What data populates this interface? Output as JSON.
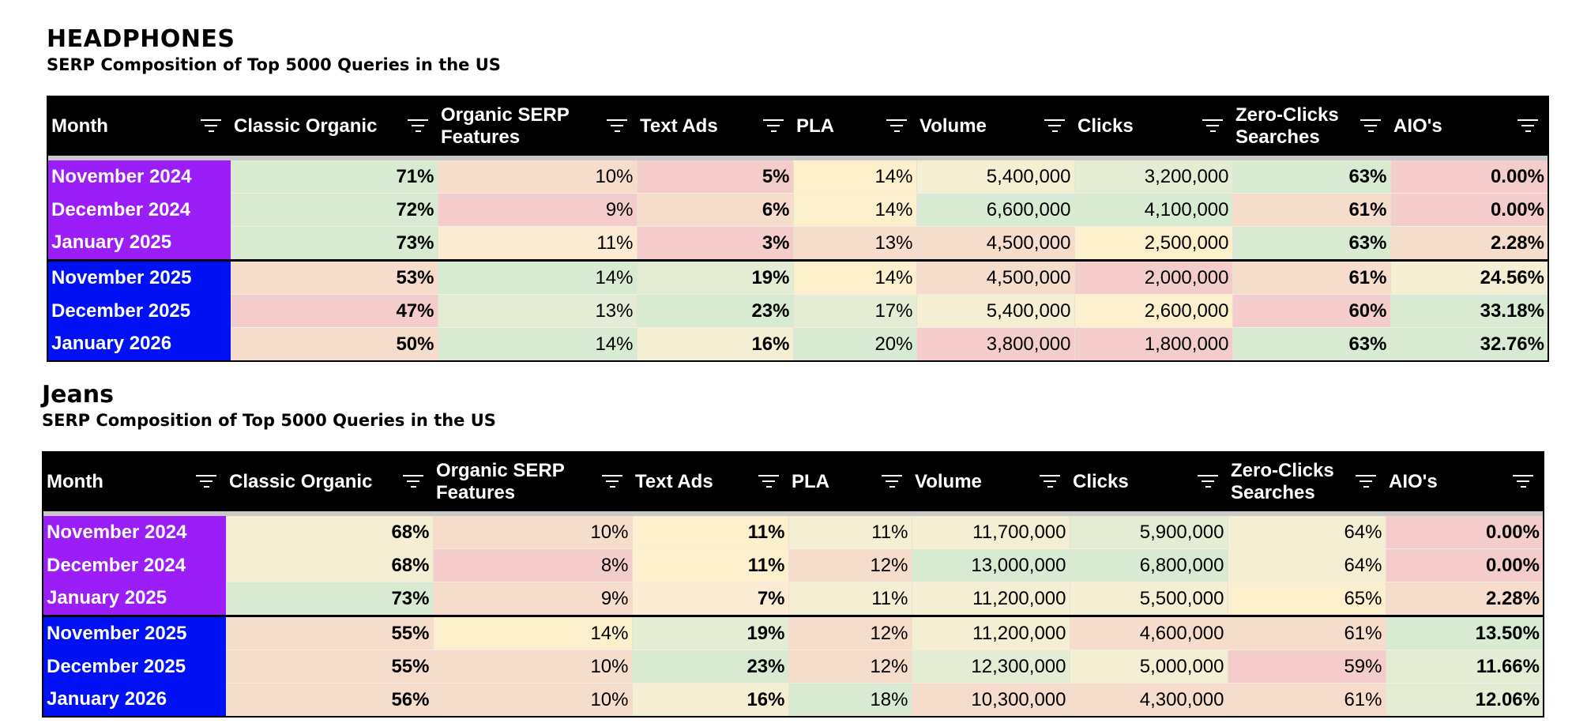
{
  "columns": [
    "Month",
    "Classic Organic",
    "Organic SERP Features",
    "Text Ads",
    "PLA",
    "Volume",
    "Clicks",
    "Zero-Clicks Searches",
    "AIO's"
  ],
  "colors": {
    "purple_month": "#9b1df8",
    "blue_month": "#0011f5",
    "green": "#d9ead3",
    "light_green": "#e4edd3",
    "yellow": "#fcf0cc",
    "light_yellow": "#f4efd3",
    "peach": "#f6dccb",
    "pink": "#f4cccc",
    "header_bg": "#000000"
  },
  "sections": [
    {
      "title": "HEADPHONES",
      "subtitle": "SERP Composition of Top 5000 Queries in the US",
      "rows": [
        {
          "group": "purple",
          "cells": [
            {
              "v": "November 2024"
            },
            {
              "v": "71%",
              "bg": "#d9ead3",
              "b": true
            },
            {
              "v": "10%",
              "bg": "#f6dccb"
            },
            {
              "v": "5%",
              "bg": "#f4cccc",
              "b": true
            },
            {
              "v": "14%",
              "bg": "#fcf0cc"
            },
            {
              "v": "5,400,000",
              "bg": "#f4efd3"
            },
            {
              "v": "3,200,000",
              "bg": "#e4edd3"
            },
            {
              "v": "63%",
              "bg": "#d9ead3",
              "b": true
            },
            {
              "v": "0.00%",
              "bg": "#f4cccc",
              "b": true
            }
          ]
        },
        {
          "group": "purple",
          "cells": [
            {
              "v": "December 2024"
            },
            {
              "v": "72%",
              "bg": "#d9ead3",
              "b": true
            },
            {
              "v": "9%",
              "bg": "#f4cccc"
            },
            {
              "v": "6%",
              "bg": "#f6dccb",
              "b": true
            },
            {
              "v": "14%",
              "bg": "#fcf0cc"
            },
            {
              "v": "6,600,000",
              "bg": "#d9ead3"
            },
            {
              "v": "4,100,000",
              "bg": "#d9ead3"
            },
            {
              "v": "61%",
              "bg": "#f6dccb",
              "b": true
            },
            {
              "v": "0.00%",
              "bg": "#f4cccc",
              "b": true
            }
          ]
        },
        {
          "group": "purple",
          "cells": [
            {
              "v": "January 2025"
            },
            {
              "v": "73%",
              "bg": "#d9ead3",
              "b": true
            },
            {
              "v": "11%",
              "bg": "#fcebd3"
            },
            {
              "v": "3%",
              "bg": "#f4cccc",
              "b": true
            },
            {
              "v": "13%",
              "bg": "#f6dccb"
            },
            {
              "v": "4,500,000",
              "bg": "#f6dccb"
            },
            {
              "v": "2,500,000",
              "bg": "#fcf0cc"
            },
            {
              "v": "63%",
              "bg": "#d9ead3",
              "b": true
            },
            {
              "v": "2.28%",
              "bg": "#f6dccb",
              "b": true
            }
          ]
        },
        {
          "group": "blue",
          "cells": [
            {
              "v": "November 2025"
            },
            {
              "v": "53%",
              "bg": "#f6dccb",
              "b": true
            },
            {
              "v": "14%",
              "bg": "#d9ead3"
            },
            {
              "v": "19%",
              "bg": "#e4edd3",
              "b": true
            },
            {
              "v": "14%",
              "bg": "#fcf0cc"
            },
            {
              "v": "4,500,000",
              "bg": "#f6dccb"
            },
            {
              "v": "2,000,000",
              "bg": "#f4cccc"
            },
            {
              "v": "61%",
              "bg": "#f6dccb",
              "b": true
            },
            {
              "v": "24.56%",
              "bg": "#f4efd3",
              "b": true
            }
          ]
        },
        {
          "group": "blue",
          "cells": [
            {
              "v": "December 2025"
            },
            {
              "v": "47%",
              "bg": "#f4cccc",
              "b": true
            },
            {
              "v": "13%",
              "bg": "#e4edd3"
            },
            {
              "v": "23%",
              "bg": "#d9ead3",
              "b": true
            },
            {
              "v": "17%",
              "bg": "#e4edd3"
            },
            {
              "v": "5,400,000",
              "bg": "#f4efd3"
            },
            {
              "v": "2,600,000",
              "bg": "#fcf0cc"
            },
            {
              "v": "60%",
              "bg": "#f4cccc",
              "b": true
            },
            {
              "v": "33.18%",
              "bg": "#d9ead3",
              "b": true
            }
          ]
        },
        {
          "group": "blue",
          "cells": [
            {
              "v": "January 2026"
            },
            {
              "v": "50%",
              "bg": "#f6dccb",
              "b": true
            },
            {
              "v": "14%",
              "bg": "#d9ead3"
            },
            {
              "v": "16%",
              "bg": "#f4efd3",
              "b": true
            },
            {
              "v": "20%",
              "bg": "#d9ead3"
            },
            {
              "v": "3,800,000",
              "bg": "#f4cccc"
            },
            {
              "v": "1,800,000",
              "bg": "#f4cccc"
            },
            {
              "v": "63%",
              "bg": "#d9ead3",
              "b": true
            },
            {
              "v": "32.76%",
              "bg": "#d9ead3",
              "b": true
            }
          ]
        }
      ]
    },
    {
      "title": "Jeans",
      "subtitle": "SERP Composition of Top 5000 Queries in the US",
      "rows": [
        {
          "group": "purple",
          "cells": [
            {
              "v": "November 2024"
            },
            {
              "v": "68%",
              "bg": "#f4efd3",
              "b": true
            },
            {
              "v": "10%",
              "bg": "#f6dccb"
            },
            {
              "v": "11%",
              "bg": "#fcf0cc",
              "b": true
            },
            {
              "v": "11%",
              "bg": "#f4efd3"
            },
            {
              "v": "11,700,000",
              "bg": "#f4efd3"
            },
            {
              "v": "5,900,000",
              "bg": "#e4edd3"
            },
            {
              "v": "64%",
              "bg": "#f4efd3"
            },
            {
              "v": "0.00%",
              "bg": "#f4cccc",
              "b": true
            }
          ]
        },
        {
          "group": "purple",
          "cells": [
            {
              "v": "December 2024"
            },
            {
              "v": "68%",
              "bg": "#f4efd3",
              "b": true
            },
            {
              "v": "8%",
              "bg": "#f4cccc"
            },
            {
              "v": "11%",
              "bg": "#fcf0cc",
              "b": true
            },
            {
              "v": "12%",
              "bg": "#f6dccb"
            },
            {
              "v": "13,000,000",
              "bg": "#d9ead3"
            },
            {
              "v": "6,800,000",
              "bg": "#d9ead3"
            },
            {
              "v": "64%",
              "bg": "#f4efd3"
            },
            {
              "v": "0.00%",
              "bg": "#f4cccc",
              "b": true
            }
          ]
        },
        {
          "group": "purple",
          "cells": [
            {
              "v": "January 2025"
            },
            {
              "v": "73%",
              "bg": "#d9ead3",
              "b": true
            },
            {
              "v": "9%",
              "bg": "#f6dccb"
            },
            {
              "v": "7%",
              "bg": "#fcebd3",
              "b": true
            },
            {
              "v": "11%",
              "bg": "#f4efd3"
            },
            {
              "v": "11,200,000",
              "bg": "#f4efd3"
            },
            {
              "v": "5,500,000",
              "bg": "#f4efd3"
            },
            {
              "v": "65%",
              "bg": "#fcf0cc"
            },
            {
              "v": "2.28%",
              "bg": "#f6dccb",
              "b": true
            }
          ]
        },
        {
          "group": "blue",
          "cells": [
            {
              "v": "November 2025"
            },
            {
              "v": "55%",
              "bg": "#f6dccb",
              "b": true
            },
            {
              "v": "14%",
              "bg": "#fcf0cc"
            },
            {
              "v": "19%",
              "bg": "#e4edd3",
              "b": true
            },
            {
              "v": "12%",
              "bg": "#f6dccb"
            },
            {
              "v": "11,200,000",
              "bg": "#f4efd3"
            },
            {
              "v": "4,600,000",
              "bg": "#f6dccb"
            },
            {
              "v": "61%",
              "bg": "#f6dccb"
            },
            {
              "v": "13.50%",
              "bg": "#d9ead3",
              "b": true
            }
          ]
        },
        {
          "group": "blue",
          "cells": [
            {
              "v": "December 2025"
            },
            {
              "v": "55%",
              "bg": "#f6dccb",
              "b": true
            },
            {
              "v": "10%",
              "bg": "#f6dccb"
            },
            {
              "v": "23%",
              "bg": "#d9ead3",
              "b": true
            },
            {
              "v": "12%",
              "bg": "#f6dccb"
            },
            {
              "v": "12,300,000",
              "bg": "#e4edd3"
            },
            {
              "v": "5,000,000",
              "bg": "#f4efd3"
            },
            {
              "v": "59%",
              "bg": "#f4cccc"
            },
            {
              "v": "11.66%",
              "bg": "#e4edd3",
              "b": true
            }
          ]
        },
        {
          "group": "blue",
          "cells": [
            {
              "v": "January 2026"
            },
            {
              "v": "56%",
              "bg": "#f6dccb",
              "b": true
            },
            {
              "v": "10%",
              "bg": "#f6dccb"
            },
            {
              "v": "16%",
              "bg": "#f4efd3",
              "b": true
            },
            {
              "v": "18%",
              "bg": "#d9ead3"
            },
            {
              "v": "10,300,000",
              "bg": "#f6dccb"
            },
            {
              "v": "4,300,000",
              "bg": "#f6dccb"
            },
            {
              "v": "61%",
              "bg": "#f6dccb"
            },
            {
              "v": "12.06%",
              "bg": "#e4edd3",
              "b": true
            }
          ]
        }
      ]
    }
  ]
}
